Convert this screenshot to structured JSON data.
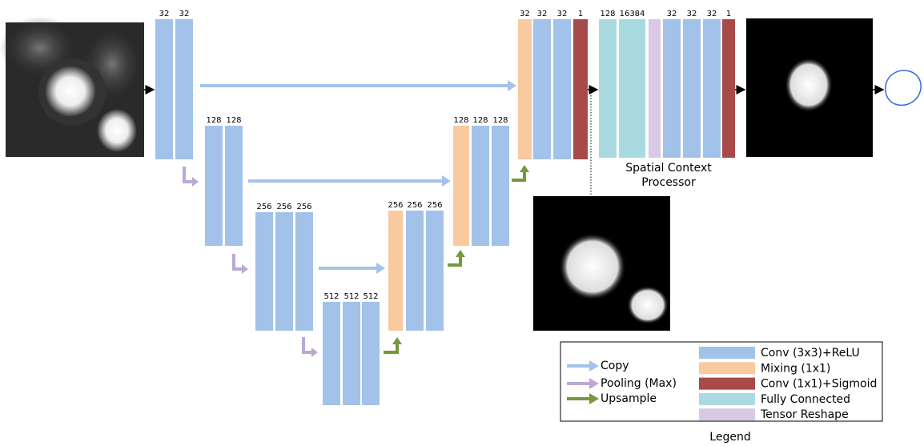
{
  "network": {
    "encoder_1": [
      "32",
      "32"
    ],
    "encoder_2": [
      "128",
      "128"
    ],
    "encoder_3": [
      "256",
      "256",
      "256"
    ],
    "bottleneck": [
      "512",
      "512",
      "512"
    ],
    "decoder_3": [
      "256",
      "256",
      "256"
    ],
    "decoder_2": [
      "128",
      "128",
      "128"
    ],
    "decoder_1": [
      "32",
      "32",
      "32",
      "1"
    ]
  },
  "spatial_context_processor": {
    "channels": [
      "128",
      "16384",
      "32",
      "32",
      "32",
      "1"
    ],
    "title": "Spatial Context Processor"
  },
  "legend": {
    "title": "Legend",
    "arrows": [
      "Copy",
      "Pooling (Max)",
      "Upsample"
    ],
    "blocks": [
      "Conv (3x3)+ReLU",
      "Mixing (1x1)",
      "Conv (1x1)+Sigmoid",
      "Fully Connected",
      "Tensor Reshape"
    ]
  }
}
